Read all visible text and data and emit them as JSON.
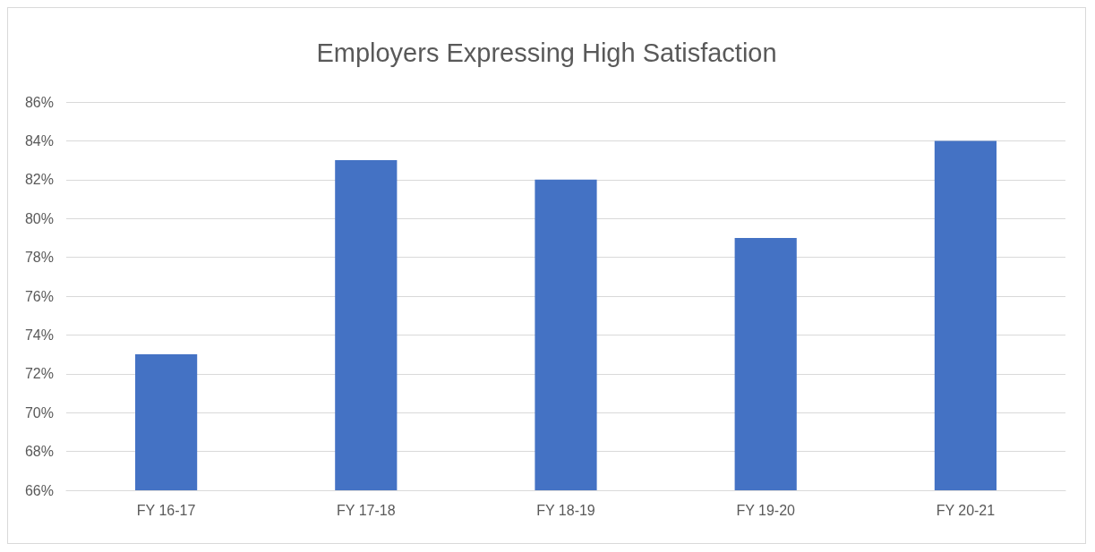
{
  "chart_data": {
    "type": "bar",
    "title": "Employers Expressing High Satisfaction",
    "categories": [
      "FY 16-17",
      "FY 17-18",
      "FY 18-19",
      "FY 19-20",
      "FY 20-21"
    ],
    "values": [
      73,
      83,
      82,
      79,
      84
    ],
    "color": "#4472c4",
    "ylim": [
      66,
      86
    ],
    "yticks": [
      {
        "value": 66,
        "label": "66%"
      },
      {
        "value": 68,
        "label": "68%"
      },
      {
        "value": 70,
        "label": "70%"
      },
      {
        "value": 72,
        "label": "72%"
      },
      {
        "value": 74,
        "label": "74%"
      },
      {
        "value": 76,
        "label": "76%"
      },
      {
        "value": 78,
        "label": "78%"
      },
      {
        "value": 80,
        "label": "80%"
      },
      {
        "value": 82,
        "label": "82%"
      },
      {
        "value": 84,
        "label": "84%"
      },
      {
        "value": 86,
        "label": "86%"
      }
    ],
    "grid": "y"
  }
}
